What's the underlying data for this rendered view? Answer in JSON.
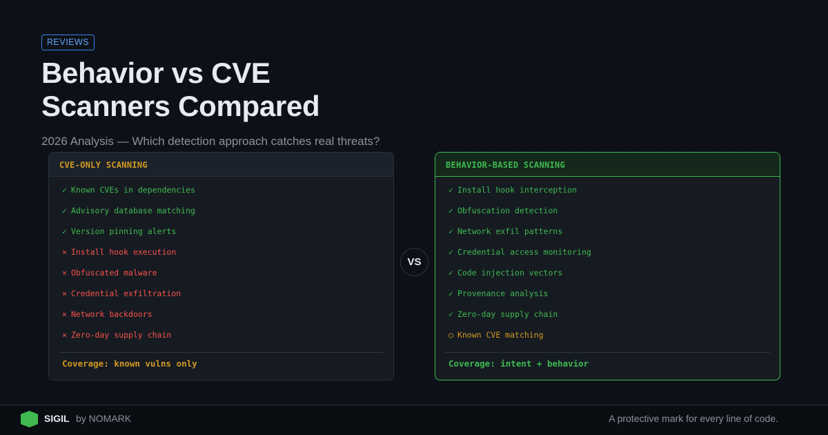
{
  "badge": "REVIEWS",
  "title_line1": "Behavior vs CVE",
  "title_line2": "Scanners Compared",
  "subtitle": "2026 Analysis — Which detection approach catches real threats?",
  "vs": "VS",
  "left": {
    "title": "CVE-ONLY SCANNING",
    "items": [
      {
        "icon": "✓",
        "status": "ok",
        "text": "Known CVEs in dependencies"
      },
      {
        "icon": "✓",
        "status": "ok",
        "text": "Advisory database matching"
      },
      {
        "icon": "✓",
        "status": "ok",
        "text": "Version pinning alerts"
      },
      {
        "icon": "×",
        "status": "bad",
        "text": "Install hook execution"
      },
      {
        "icon": "×",
        "status": "bad",
        "text": "Obfuscated malware"
      },
      {
        "icon": "×",
        "status": "bad",
        "text": "Credential exfiltration"
      },
      {
        "icon": "×",
        "status": "bad",
        "text": "Network backdoors"
      },
      {
        "icon": "×",
        "status": "bad",
        "text": "Zero-day supply chain"
      }
    ],
    "coverage": "Coverage: known vulns only",
    "coverage_color": "#d29922"
  },
  "right": {
    "title": "BEHAVIOR-BASED SCANNING",
    "items": [
      {
        "icon": "✓",
        "status": "ok",
        "text": "Install hook interception"
      },
      {
        "icon": "✓",
        "status": "ok",
        "text": "Obfuscation detection"
      },
      {
        "icon": "✓",
        "status": "ok",
        "text": "Network exfil patterns"
      },
      {
        "icon": "✓",
        "status": "ok",
        "text": "Credential access monitoring"
      },
      {
        "icon": "✓",
        "status": "ok",
        "text": "Code injection vectors"
      },
      {
        "icon": "✓",
        "status": "ok",
        "text": "Provenance analysis"
      },
      {
        "icon": "✓",
        "status": "ok",
        "text": "Zero-day supply chain"
      },
      {
        "icon": "○",
        "status": "warn",
        "text": "Known CVE matching"
      }
    ],
    "coverage": "Coverage: intent + behavior",
    "coverage_color": "#3fb950"
  },
  "footer": {
    "brand": "SIGIL",
    "by": "by NOMARK",
    "tagline": "A protective mark for every line of code.",
    "logo_color": "#3fb950"
  }
}
